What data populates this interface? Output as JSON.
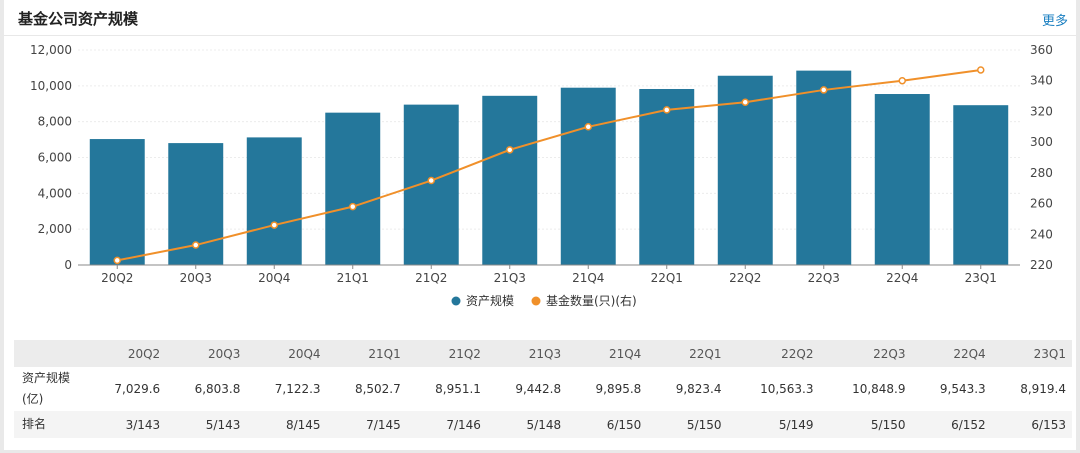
{
  "header": {
    "title": "基金公司资产规模",
    "more_label": "更多"
  },
  "chart_data": {
    "type": "bar",
    "categories": [
      "20Q2",
      "20Q3",
      "20Q4",
      "21Q1",
      "21Q2",
      "21Q3",
      "21Q4",
      "22Q1",
      "22Q2",
      "22Q3",
      "22Q4",
      "23Q1"
    ],
    "series": [
      {
        "name": "资产规模",
        "kind": "bar",
        "axis": "left",
        "color": "#24779b",
        "values": [
          7029.6,
          6803.8,
          7122.3,
          8502.7,
          8951.1,
          9442.8,
          9895.8,
          9823.4,
          10563.3,
          10848.9,
          9543.3,
          8919.4
        ]
      },
      {
        "name": "基金数量(只)(右)",
        "kind": "line",
        "axis": "right",
        "color": "#f0902a",
        "values": [
          223,
          233,
          246,
          258,
          275,
          295,
          310,
          321,
          326,
          334,
          340,
          347
        ]
      }
    ],
    "ylim_left": [
      0,
      12000
    ],
    "yticks_left": [
      "0",
      "2,000",
      "4,000",
      "6,000",
      "8,000",
      "10,000",
      "12,000"
    ],
    "ylim_right": [
      220,
      360
    ],
    "yticks_right": [
      "220",
      "240",
      "260",
      "280",
      "300",
      "320",
      "340",
      "360"
    ],
    "grid": true,
    "legend_position": "bottom"
  },
  "table": {
    "corner": "",
    "rows": [
      {
        "label": "资产规模(亿)",
        "values": [
          "7,029.6",
          "6,803.8",
          "7,122.3",
          "8,502.7",
          "8,951.1",
          "9,442.8",
          "9,895.8",
          "9,823.4",
          "10,563.3",
          "10,848.9",
          "9,543.3",
          "8,919.4"
        ]
      },
      {
        "label": "排名",
        "values": [
          "3/143",
          "5/143",
          "8/145",
          "7/145",
          "7/146",
          "5/148",
          "6/150",
          "5/150",
          "5/149",
          "5/150",
          "6/152",
          "6/153"
        ]
      }
    ]
  }
}
